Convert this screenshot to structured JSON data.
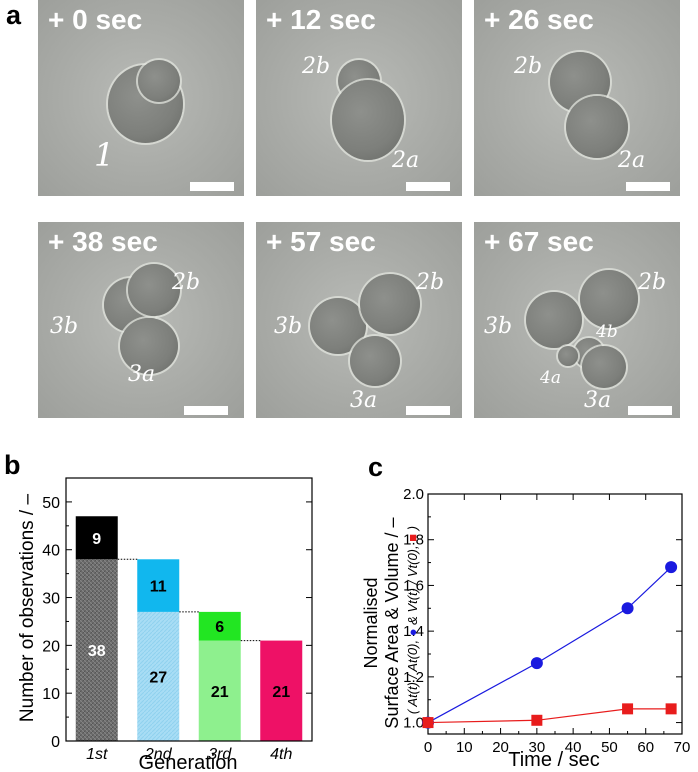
{
  "panels": {
    "a": {
      "letter": "a",
      "frames": [
        {
          "time": "+ 0 sec",
          "labels": [
            "1"
          ]
        },
        {
          "time": "+ 12 sec",
          "labels": [
            "2b",
            "2a"
          ]
        },
        {
          "time": "+ 26 sec",
          "labels": [
            "2b",
            "2a"
          ]
        },
        {
          "time": "+ 38 sec",
          "labels": [
            "2b",
            "3b",
            "3a"
          ]
        },
        {
          "time": "+ 57 sec",
          "labels": [
            "2b",
            "3b",
            "3a"
          ]
        },
        {
          "time": "+ 67 sec",
          "labels": [
            "2b",
            "3b",
            "4b",
            "4a",
            "3a"
          ]
        }
      ]
    },
    "b": {
      "letter": "b"
    },
    "c": {
      "letter": "c"
    }
  },
  "chart_data": [
    {
      "type": "bar",
      "panel": "b",
      "ylabel": "Number of observations / –",
      "xlabel": "Generation",
      "categories": [
        "1st",
        "2nd",
        "3rd",
        "4th"
      ],
      "series": [
        {
          "values": [
            38,
            27,
            21,
            21
          ],
          "colors": [
            "#6e6e6e",
            "#a8ddf5",
            "#8ef08e",
            "#ee1166"
          ],
          "value_labels": [
            "38",
            "27",
            "21",
            "21"
          ]
        },
        {
          "values": [
            9,
            11,
            6,
            0
          ],
          "colors": [
            "#000000",
            "#11b7ee",
            "#22e622",
            "#ee1166"
          ],
          "value_labels": [
            "9",
            "11",
            "6",
            ""
          ]
        }
      ],
      "ylim": [
        0,
        55
      ],
      "yticks": [
        "0",
        "10",
        "20",
        "30",
        "40",
        "50"
      ],
      "ytick_values": [
        0,
        10,
        20,
        30,
        40,
        50
      ]
    },
    {
      "type": "line",
      "panel": "c",
      "ylabel_lines": [
        "Normalised",
        "Surface Area & Volume / –"
      ],
      "ylabel_sub": [
        "( At(t) / At(0), ",
        " & Vt(t) / Vt(0), ",
        " )"
      ],
      "xlabel": "Time / sec",
      "xlim": [
        0,
        70
      ],
      "ylim": [
        0.95,
        2.0
      ],
      "xticks": [
        "0",
        "10",
        "20",
        "30",
        "40",
        "50",
        "60",
        "70"
      ],
      "xtick_values": [
        0,
        10,
        20,
        30,
        40,
        50,
        60,
        70
      ],
      "yticks": [
        "1.0",
        "1.2",
        "1.4",
        "1.6",
        "1.8",
        "2.0"
      ],
      "ytick_values": [
        1.0,
        1.2,
        1.4,
        1.6,
        1.8,
        2.0
      ],
      "series": [
        {
          "marker": "circle",
          "color": "#1a1adf",
          "x": [
            0,
            30,
            55,
            67
          ],
          "y": [
            1.0,
            1.26,
            1.5,
            1.68
          ]
        },
        {
          "marker": "square",
          "color": "#e81c1c",
          "x": [
            0,
            30,
            55,
            67
          ],
          "y": [
            1.0,
            1.01,
            1.06,
            1.06
          ]
        }
      ]
    }
  ]
}
